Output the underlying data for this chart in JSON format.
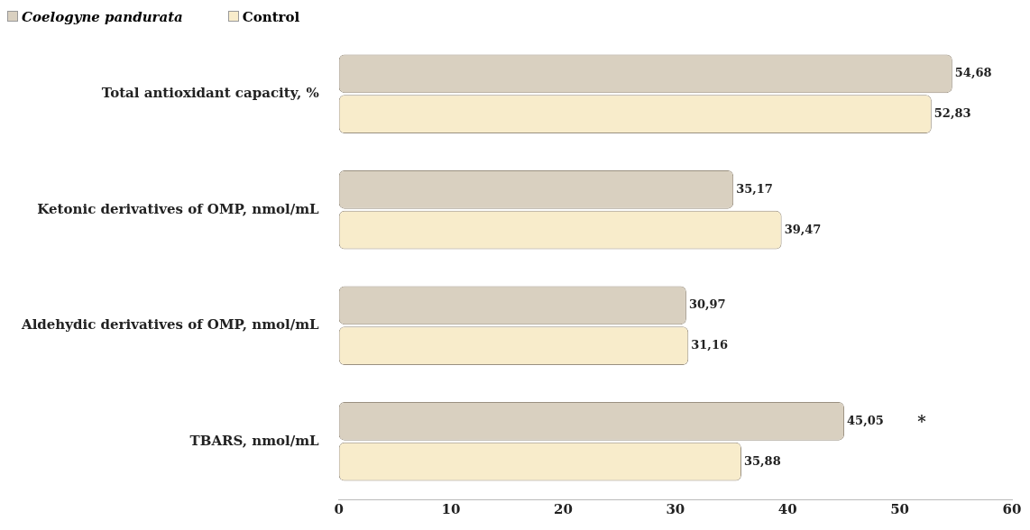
{
  "chart_data": {
    "type": "bar",
    "orientation": "horizontal",
    "categories": [
      "Total antioxidant capacity, %",
      "Ketonic derivatives of OMP, nmol/mL",
      "Aldehydic derivatives of OMP, nmol/mL",
      "TBARS, nmol/mL"
    ],
    "series": [
      {
        "name": "Coelogyne pandurata",
        "color": "#d9d0c0",
        "values": [
          54.68,
          35.17,
          30.97,
          45.05
        ],
        "value_labels": [
          "54,68",
          "35,17",
          "30,97",
          "45,05"
        ]
      },
      {
        "name": "Control",
        "color": "#f8eccb",
        "values": [
          52.83,
          39.47,
          31.16,
          35.88
        ],
        "value_labels": [
          "52,83",
          "39,47",
          "31,16",
          "35,88"
        ]
      }
    ],
    "xlim": [
      0,
      60
    ],
    "xticks": [
      0,
      10,
      20,
      30,
      40,
      50,
      60
    ],
    "grid": false,
    "legend": "top left",
    "annotations": [
      "*"
    ]
  }
}
